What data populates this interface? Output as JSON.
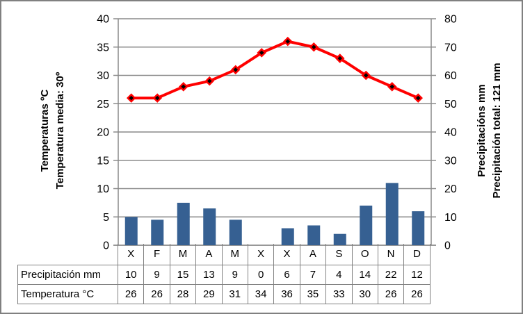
{
  "colors": {
    "background": "#FFFFFF",
    "figure_border": "#808080",
    "grid": "#8A8A8A",
    "axis": "#8A8A8A",
    "table_border": "#808080",
    "text": "#000000"
  },
  "chart_data": {
    "type": "combo",
    "categories": [
      "X",
      "F",
      "M",
      "A",
      "M",
      "X",
      "X",
      "A",
      "S",
      "O",
      "N",
      "D"
    ],
    "series": [
      {
        "name": "Precipitación mm",
        "type": "bar",
        "axis": "right",
        "color": "#366092",
        "values": [
          10,
          9,
          15,
          13,
          9,
          0,
          6,
          7,
          4,
          14,
          22,
          12
        ]
      },
      {
        "name": "Temperatura °C",
        "type": "line",
        "axis": "left",
        "color": "#FF0000",
        "marker": "diamond",
        "marker_fill": "#000000",
        "values": [
          26,
          26,
          28,
          29,
          31,
          34,
          36,
          35,
          33,
          30,
          28,
          26
        ]
      }
    ],
    "left_axis": {
      "title_line1": "Temperaturas ºC",
      "title_line2": "Temperatura media: 30º",
      "min": 0,
      "max": 40,
      "tick_step": 5,
      "ticks": [
        40,
        35,
        30,
        25,
        20,
        15,
        10,
        5,
        0
      ]
    },
    "right_axis": {
      "title_line1": "Precipitacións mm",
      "title_line2": "Precipitación total: 121 mm",
      "min": 0,
      "max": 80,
      "tick_step": 10,
      "ticks": [
        80,
        70,
        60,
        50,
        40,
        30,
        20,
        10,
        0
      ]
    },
    "grid": true,
    "legend": "none"
  }
}
